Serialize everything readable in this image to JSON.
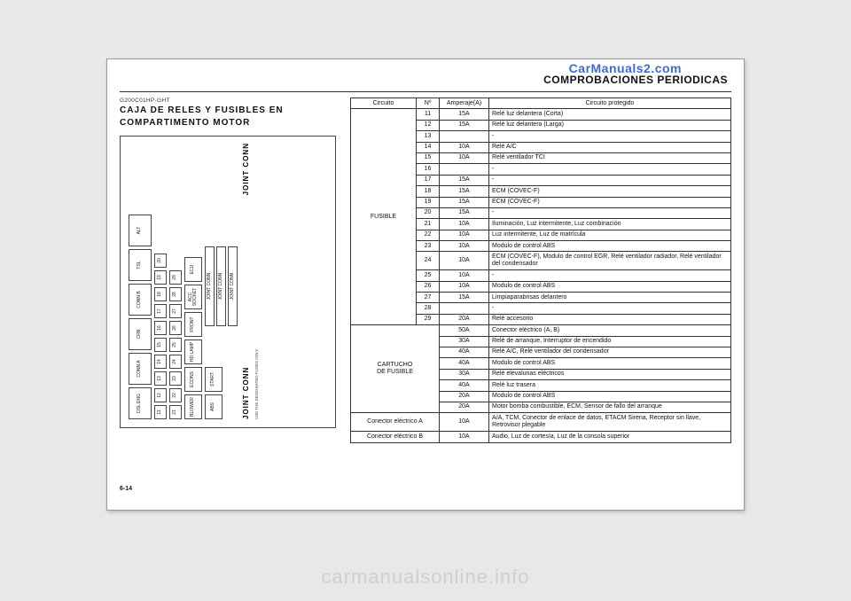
{
  "watermark_top": "CarManuals2.com",
  "watermark_bottom": "carmanualsonline.info",
  "section_title": "COMPROBACIONES PERIODICAS",
  "code_line": "G200C01HP-GHT",
  "subtitle_line1": "CAJA DE RELES Y FUSIBLES EN",
  "subtitle_line2": "COMPARTIMENTO MOTOR",
  "page_number": "6-14",
  "diagram_labels": {
    "joint1": "JOINT CONN",
    "joint2": "JOINT CONN",
    "joint3": "JOINT CONN",
    "joint4": "JOINT CONN",
    "dsl_eng": "DSL ENG",
    "crn": "CRN",
    "tsl": "TSL",
    "alt": "ALT",
    "start": "START",
    "abs": "ABS",
    "ecu": "ECU",
    "blower": "BLOWER",
    "econs": "ECONS",
    "acc": "ACC SOCKET",
    "front": "FRONT",
    "hdlamp": "HD LAMP",
    "conn_a": "CONN A",
    "conn_b": "CONN B",
    "note": "USE THE DESIGNATED FUSES ONLY"
  },
  "table": {
    "headers": {
      "circuit": "Circuito",
      "num": "Nº",
      "amp": "Amperaje(A)",
      "prot": "Circuito protegido"
    },
    "fusible_label": "FUSIBLE",
    "fusible_rows": [
      {
        "n": "11",
        "a": "15A",
        "p": "Relé luz delantera (Corta)"
      },
      {
        "n": "12",
        "a": "15A",
        "p": "Relé luz delantera (Larga)"
      },
      {
        "n": "13",
        "a": "",
        "p": "-"
      },
      {
        "n": "14",
        "a": "10A",
        "p": "Relé A/C"
      },
      {
        "n": "15",
        "a": "10A",
        "p": "Relé ventilador TCI"
      },
      {
        "n": "16",
        "a": "",
        "p": "-"
      },
      {
        "n": "17",
        "a": "15A",
        "p": "-"
      },
      {
        "n": "18",
        "a": "15A",
        "p": "ECM (COVEC-F)"
      },
      {
        "n": "19",
        "a": "15A",
        "p": "ECM (COVEC-F)"
      },
      {
        "n": "20",
        "a": "15A",
        "p": "-"
      },
      {
        "n": "21",
        "a": "10A",
        "p": "Iluminación, Luz intermitente, Luz combinación"
      },
      {
        "n": "22",
        "a": "10A",
        "p": "Luz intermitente, Luz de matrícula"
      },
      {
        "n": "23",
        "a": "10A",
        "p": "Modulo de control ABS"
      },
      {
        "n": "24",
        "a": "10A",
        "p": "ECM (COVEC-F), Modulo de control EGR, Relé ventilador radiador, Relé ventilador del condensador"
      },
      {
        "n": "25",
        "a": "10A",
        "p": "-"
      },
      {
        "n": "26",
        "a": "10A",
        "p": "Modulo de control ABS"
      },
      {
        "n": "27",
        "a": "15A",
        "p": "Limpiaparabrisas delantero"
      },
      {
        "n": "28",
        "a": "",
        "p": "-"
      },
      {
        "n": "29",
        "a": "20A",
        "p": "Relé accesorio"
      }
    ],
    "cartucho_label_l1": "CARTUCHO",
    "cartucho_label_l2": "DE FUSIBLE",
    "cartucho_rows": [
      {
        "a": "50A",
        "p": "Conector eléctrico (A, B)"
      },
      {
        "a": "30A",
        "p": "Relé de arranque, Interruptor de encendido"
      },
      {
        "a": "40A",
        "p": "Relé A/C, Relé ventilador del condensador"
      },
      {
        "a": "40A",
        "p": "Modulo de control ABS"
      },
      {
        "a": "30A",
        "p": "Relé elevalunas eléctricos"
      },
      {
        "a": "40A",
        "p": "Relé luz trasera"
      },
      {
        "a": "20A",
        "p": "Modulo de control ABS"
      },
      {
        "a": "20A",
        "p": "Motor bomba combustible, ECM, Sensor de fallo del arranque"
      }
    ],
    "conn_a": {
      "label": "Conector eléctrico A",
      "a": "10A",
      "p": "A/A, TCM, Conector de enlace de datos, ETACM Sirena, Receptor sin llave, Retrovisor plegable"
    },
    "conn_b": {
      "label": "Conector eléctrico B",
      "a": "10A",
      "p": "Audio, Luz de cortesía, Luz de la consola superior"
    }
  }
}
